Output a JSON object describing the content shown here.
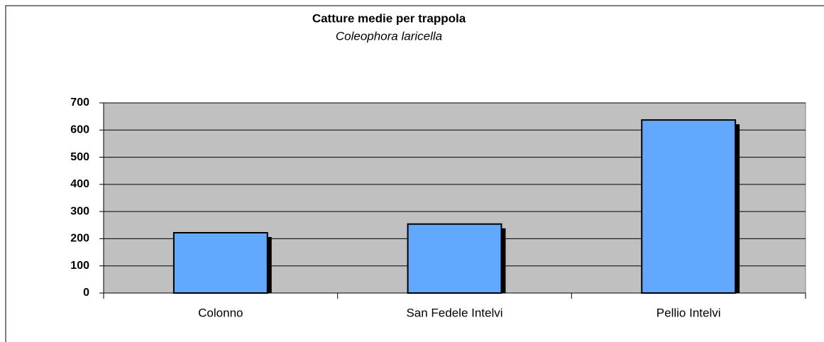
{
  "chart_data": {
    "type": "bar",
    "title": "Catture medie per trappola",
    "subtitle": "Coleophora laricella",
    "categories": [
      "Colonno",
      "San Fedele Intelvi",
      "Pellio Intelvi"
    ],
    "values": [
      222,
      254,
      637
    ],
    "color": "#62a8ff",
    "ylim": [
      0,
      700
    ],
    "yticks": [
      0,
      100,
      200,
      300,
      400,
      500,
      600,
      700
    ],
    "grid": true
  }
}
